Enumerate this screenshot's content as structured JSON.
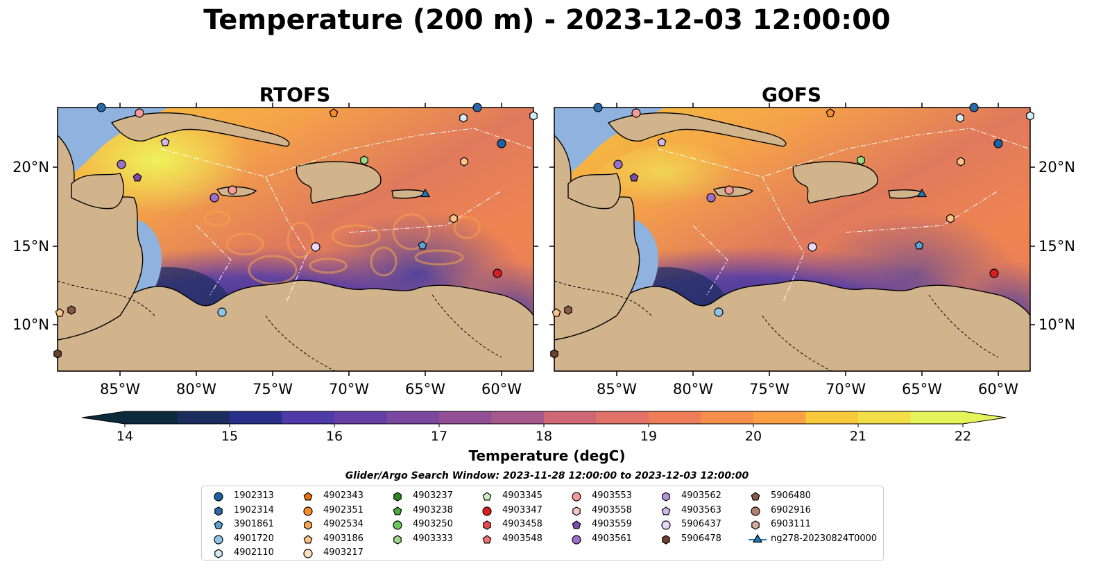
{
  "title": "Temperature (200 m) - 2023-12-03 12:00:00",
  "panels": [
    {
      "key": "rtofs",
      "title": "RTOFS"
    },
    {
      "key": "gofs",
      "title": "GOFS"
    }
  ],
  "lon_ticks": [
    "85°W",
    "80°W",
    "75°W",
    "70°W",
    "65°W",
    "60°W"
  ],
  "lat_ticks": [
    "20°N",
    "15°N",
    "10°N"
  ],
  "colorbar": {
    "label": "Temperature (degC)",
    "ticks": [
      "14",
      "15",
      "16",
      "17",
      "18",
      "19",
      "20",
      "21",
      "22"
    ],
    "min": 14,
    "max": 22,
    "colors": [
      "#0b2a3c",
      "#1a2d5e",
      "#28308a",
      "#3a35a0",
      "#4e3aa8",
      "#6440a6",
      "#7a489f",
      "#914f96",
      "#a6588c",
      "#bb6080",
      "#cf6874",
      "#e07267",
      "#ee7d5a",
      "#f68e4c",
      "#fba044",
      "#fcb43e",
      "#f9c93c",
      "#f2de46",
      "#e6f45c"
    ]
  },
  "search_window": "Glider/Argo Search Window: 2023-11-28 12:00:00 to 2023-12-03 12:00:00",
  "legend": [
    {
      "label": "1902313",
      "marker": "circle",
      "color": "#1f5fa3"
    },
    {
      "label": "1902314",
      "marker": "hexagon",
      "color": "#2b6aa8"
    },
    {
      "label": "3901861",
      "marker": "pentagon",
      "color": "#5aa2d8"
    },
    {
      "label": "4901720",
      "marker": "circle",
      "color": "#8ec4ea"
    },
    {
      "label": "4902110",
      "marker": "hexagon",
      "color": "#d4ebf8"
    },
    {
      "label": "4902343",
      "marker": "pentagon",
      "color": "#e8720c"
    },
    {
      "label": "4902351",
      "marker": "circle",
      "color": "#f68c2a"
    },
    {
      "label": "4902534",
      "marker": "hexagon",
      "color": "#fba552"
    },
    {
      "label": "4903186",
      "marker": "pentagon",
      "color": "#fcc487"
    },
    {
      "label": "4903217",
      "marker": "circle",
      "color": "#fde0c0"
    },
    {
      "label": "4903237",
      "marker": "hexagon",
      "color": "#2a8a2a"
    },
    {
      "label": "4903238",
      "marker": "pentagon",
      "color": "#4caa3f"
    },
    {
      "label": "4903250",
      "marker": "circle",
      "color": "#6cc65a"
    },
    {
      "label": "4903333",
      "marker": "hexagon",
      "color": "#9ad98a"
    },
    {
      "label": "4903345",
      "marker": "pentagon",
      "color": "#cdf0c2"
    },
    {
      "label": "4903347",
      "marker": "circle",
      "color": "#d62020"
    },
    {
      "label": "4903458",
      "marker": "hexagon",
      "color": "#e84a4a"
    },
    {
      "label": "4903548",
      "marker": "pentagon",
      "color": "#f27070"
    },
    {
      "label": "4903553",
      "marker": "circle",
      "color": "#f59a98"
    },
    {
      "label": "4903558",
      "marker": "hexagon",
      "color": "#fac6c4"
    },
    {
      "label": "4903559",
      "marker": "pentagon",
      "color": "#7b4ea8"
    },
    {
      "label": "4903561",
      "marker": "circle",
      "color": "#9a70c8"
    },
    {
      "label": "4903562",
      "marker": "hexagon",
      "color": "#b594dc"
    },
    {
      "label": "4903563",
      "marker": "pentagon",
      "color": "#d2b8ee"
    },
    {
      "label": "5906437",
      "marker": "circle",
      "color": "#e9d6f8"
    },
    {
      "label": "5906478",
      "marker": "hexagon",
      "color": "#6b4030"
    },
    {
      "label": "5906480",
      "marker": "pentagon",
      "color": "#8c5a48"
    },
    {
      "label": "6902916",
      "marker": "circle",
      "color": "#b08272"
    },
    {
      "label": "6903111",
      "marker": "hexagon",
      "color": "#d6aa9a"
    },
    {
      "label": "ng278-20230824T0000",
      "marker": "triangle-line",
      "color": "#1f77b4"
    }
  ]
}
